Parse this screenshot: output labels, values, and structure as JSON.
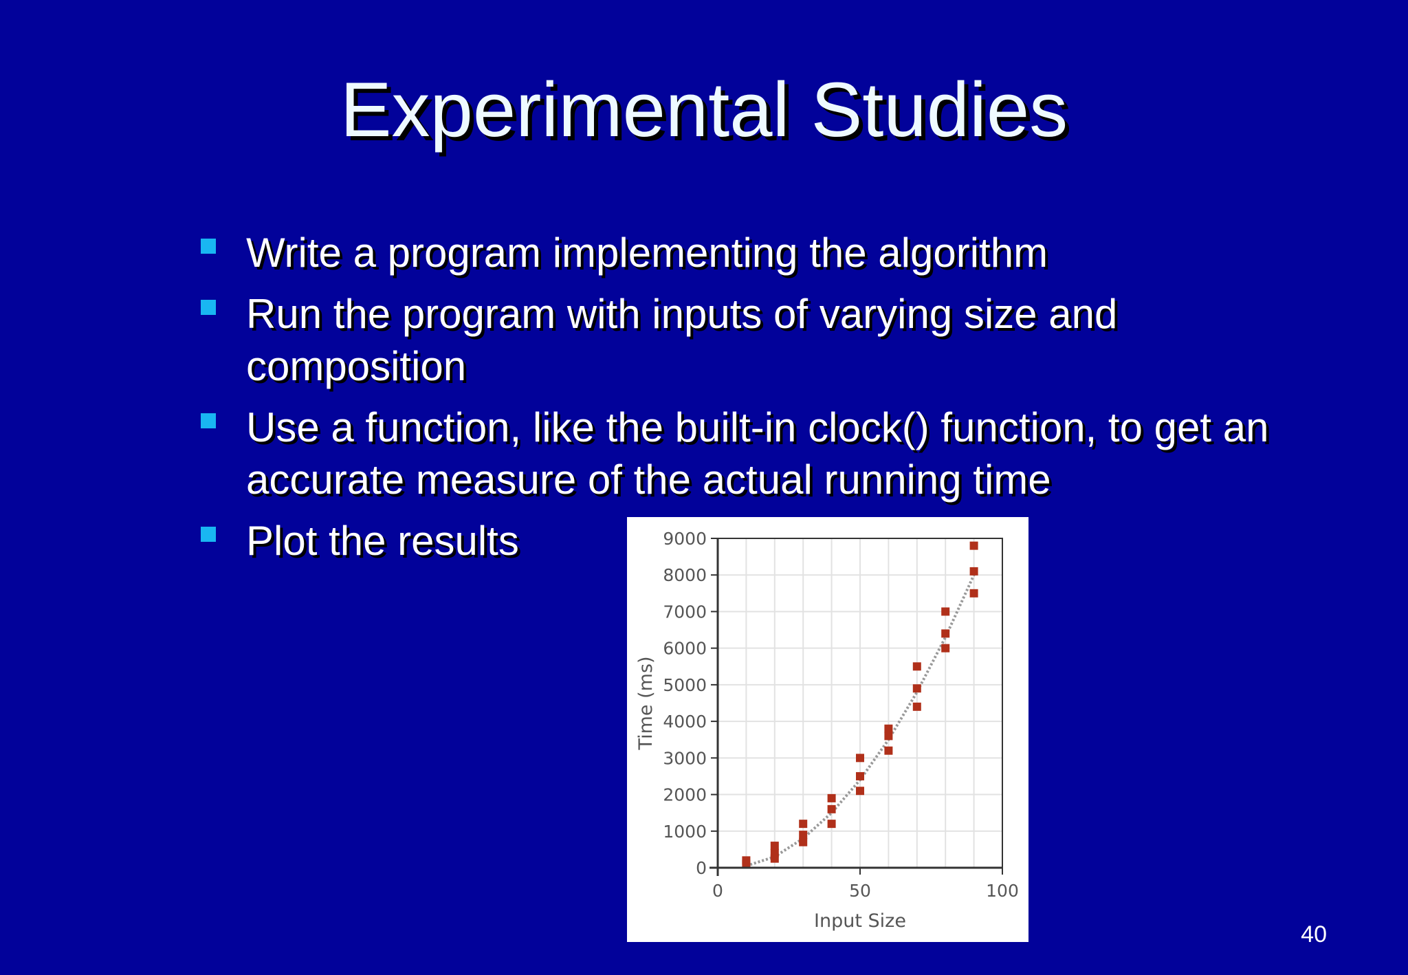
{
  "slide": {
    "title": "Experimental Studies",
    "page_number": "40",
    "colors": {
      "background": "#02029a",
      "title_text": "#eefaff",
      "bullet_marker": "#19b6f2",
      "data_point": "#b0301a",
      "trend_line": "#999999"
    }
  },
  "bullets": [
    {
      "text": "Write a program implementing the algorithm"
    },
    {
      "text": "Run the program with inputs of varying size and composition"
    },
    {
      "text": "Use a function, like the built-in clock() function, to get an accurate measure of the actual running time"
    },
    {
      "text": "Plot the results"
    }
  ],
  "chart_data": {
    "type": "scatter",
    "title": "",
    "xlabel": "Input Size",
    "ylabel": "Time (ms)",
    "xlim": [
      0,
      100
    ],
    "ylim": [
      0,
      9000
    ],
    "x_ticks": [
      0,
      50,
      100
    ],
    "y_ticks": [
      0,
      1000,
      2000,
      3000,
      4000,
      5000,
      6000,
      7000,
      8000,
      9000
    ],
    "grid": true,
    "series": [
      {
        "points": [
          [
            10,
            100
          ],
          [
            10,
            200
          ],
          [
            20,
            250
          ],
          [
            20,
            400
          ],
          [
            20,
            600
          ],
          [
            30,
            700
          ],
          [
            30,
            900
          ],
          [
            30,
            1200
          ],
          [
            40,
            1200
          ],
          [
            40,
            1600
          ],
          [
            40,
            1900
          ],
          [
            50,
            2100
          ],
          [
            50,
            2500
          ],
          [
            50,
            3000
          ],
          [
            60,
            3200
          ],
          [
            60,
            3600
          ],
          [
            60,
            3800
          ],
          [
            70,
            4400
          ],
          [
            70,
            4900
          ],
          [
            70,
            5500
          ],
          [
            80,
            6000
          ],
          [
            80,
            6400
          ],
          [
            80,
            7000
          ],
          [
            90,
            7500
          ],
          [
            90,
            8100
          ],
          [
            90,
            8800
          ]
        ]
      }
    ],
    "trend": [
      [
        10,
        50
      ],
      [
        20,
        300
      ],
      [
        30,
        800
      ],
      [
        40,
        1500
      ],
      [
        50,
        2400
      ],
      [
        60,
        3500
      ],
      [
        70,
        4800
      ],
      [
        80,
        6300
      ],
      [
        90,
        8000
      ]
    ]
  }
}
